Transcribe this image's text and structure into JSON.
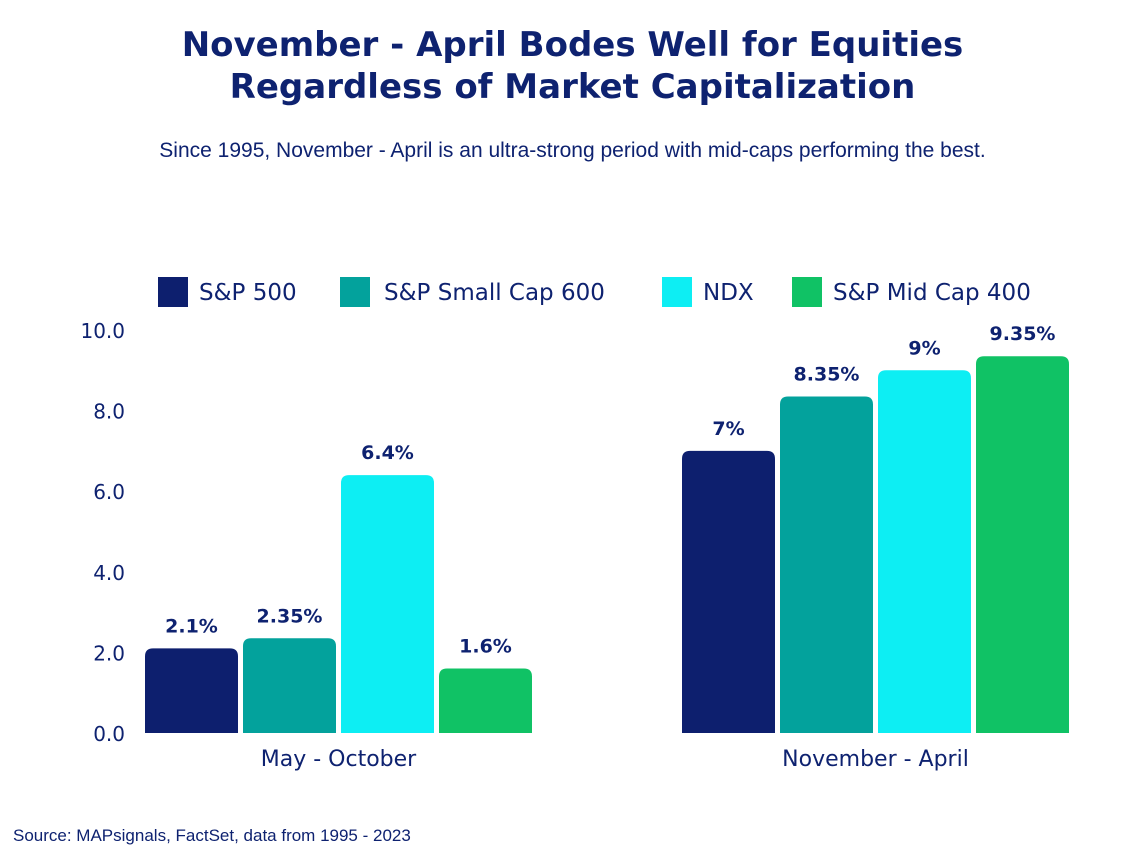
{
  "title_lines": [
    "November - April Bodes Well for Equities",
    "Regardless of Market Capitalization"
  ],
  "subtitle": "Since 1995, November - April is an ultra-strong period with mid-caps performing the best.",
  "source": "Source: MAPsignals, FactSet, data from 1995 - 2023",
  "chart_data": {
    "type": "bar",
    "title": "November - April Bodes Well for Equities Regardless of Market Capitalization",
    "subtitle": "Since 1995, November - April is an ultra-strong period with mid-caps performing the best.",
    "categories": [
      "May - October",
      "November - April"
    ],
    "series": [
      {
        "name": "S&P 500",
        "color": "#0d1f6e",
        "values": [
          2.1,
          7
        ],
        "labels": [
          "2.1%",
          "7%"
        ]
      },
      {
        "name": "S&P Small Cap 600",
        "color": "#03a29c",
        "values": [
          2.35,
          8.35
        ],
        "labels": [
          "2.35%",
          "8.35%"
        ]
      },
      {
        "name": "NDX",
        "color": "#0deef3",
        "values": [
          6.4,
          9
        ],
        "labels": [
          "6.4%",
          "9%"
        ]
      },
      {
        "name": "S&P Mid Cap 400",
        "color": "#10c265",
        "values": [
          1.6,
          9.35
        ],
        "labels": [
          "1.6%",
          "9.35%"
        ]
      }
    ],
    "yticks": [
      "0.0",
      "2.0",
      "4.0",
      "6.0",
      "8.0",
      "10.0"
    ],
    "ylim": [
      0,
      10
    ],
    "grid": false,
    "legend": "top"
  }
}
